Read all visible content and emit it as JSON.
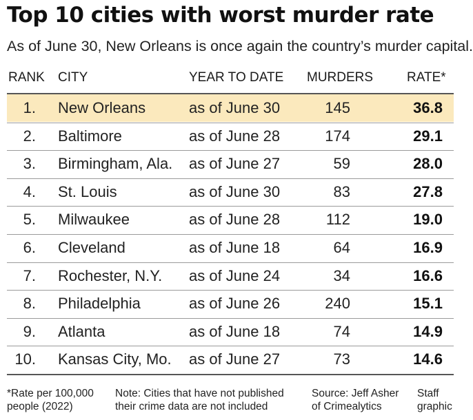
{
  "title": "Top 10 cities with worst murder rate",
  "subtitle": "As of June 30, New Orleans is once again the country’s murder capital.",
  "columns": {
    "rank": "RANK",
    "city": "CITY",
    "ytd": "YEAR TO DATE",
    "murders": "MURDERS",
    "rate": "RATE*"
  },
  "rows": [
    {
      "rank": "1.",
      "city": "New Orleans",
      "ytd": "as of June 30",
      "murders": "145",
      "rate": "36.8"
    },
    {
      "rank": "2.",
      "city": "Baltimore",
      "ytd": "as of June 28",
      "murders": "174",
      "rate": "29.1"
    },
    {
      "rank": "3.",
      "city": "Birmingham, Ala.",
      "ytd": "as of June 27",
      "murders": "59",
      "rate": "28.0"
    },
    {
      "rank": "4.",
      "city": "St. Louis",
      "ytd": "as of June 30",
      "murders": "83",
      "rate": "27.8"
    },
    {
      "rank": "5.",
      "city": "Milwaukee",
      "ytd": "as of June 28",
      "murders": "112",
      "rate": "19.0"
    },
    {
      "rank": "6.",
      "city": "Cleveland",
      "ytd": "as of June 18",
      "murders": "64",
      "rate": "16.9"
    },
    {
      "rank": "7.",
      "city": "Rochester, N.Y.",
      "ytd": "as of June 24",
      "murders": "34",
      "rate": "16.6"
    },
    {
      "rank": "8.",
      "city": "Philadelphia",
      "ytd": "as of June 26",
      "murders": "240",
      "rate": "15.1"
    },
    {
      "rank": "9.",
      "city": "Atlanta",
      "ytd": "as of June 18",
      "murders": "74",
      "rate": "14.9"
    },
    {
      "rank": "10.",
      "city": "Kansas City, Mo.",
      "ytd": "as of June 27",
      "murders": "73",
      "rate": "14.6"
    }
  ],
  "highlight_color": "#fbe9bd",
  "footnotes": {
    "rate_note_1": "*Rate per 100,000",
    "rate_note_2": "people (2022)",
    "cities_note_1": "Note: Cities that have not published",
    "cities_note_2": "their crime data are not included",
    "source_1": "Source: Jeff Asher",
    "source_2": "of Crimealytics",
    "credit_1": "Staff",
    "credit_2": "graphic"
  },
  "chart_data": {
    "type": "table",
    "title": "Top 10 cities with worst murder rate",
    "subtitle": "As of June 30, New Orleans is once again the country’s murder capital.",
    "columns": [
      "RANK",
      "CITY",
      "YEAR TO DATE",
      "MURDERS",
      "RATE*"
    ],
    "rows": [
      [
        1,
        "New Orleans",
        "as of June 30",
        145,
        36.8
      ],
      [
        2,
        "Baltimore",
        "as of June 28",
        174,
        29.1
      ],
      [
        3,
        "Birmingham, Ala.",
        "as of June 27",
        59,
        28.0
      ],
      [
        4,
        "St. Louis",
        "as of June 30",
        83,
        27.8
      ],
      [
        5,
        "Milwaukee",
        "as of June 28",
        112,
        19.0
      ],
      [
        6,
        "Cleveland",
        "as of June 18",
        64,
        16.9
      ],
      [
        7,
        "Rochester, N.Y.",
        "as of June 24",
        34,
        16.6
      ],
      [
        8,
        "Philadelphia",
        "as of June 26",
        240,
        15.1
      ],
      [
        9,
        "Atlanta",
        "as of June 18",
        74,
        14.9
      ],
      [
        10,
        "Kansas City, Mo.",
        "as of June 27",
        73,
        14.6
      ]
    ]
  }
}
